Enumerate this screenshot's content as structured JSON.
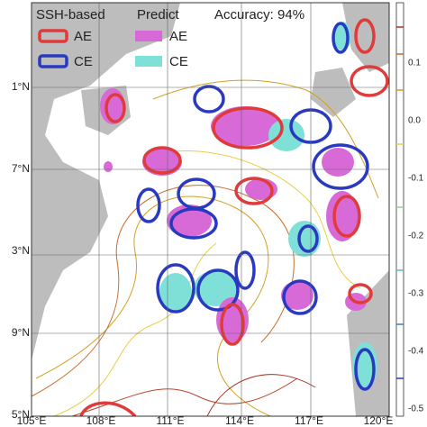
{
  "legend": {
    "headers": [
      "SSH-based",
      "Predict",
      "Accuracy: 94%"
    ],
    "entries": [
      "AE",
      "CE",
      "AE",
      "CE"
    ]
  },
  "axes": {
    "y_labels": [
      "1°N",
      "7°N",
      "3°N",
      "9°N",
      "5°N"
    ],
    "x_labels": [
      "105°E",
      "108°E",
      "111°E",
      "114°E",
      "117°E",
      "120°E"
    ]
  },
  "colorbar": {
    "labels": [
      "0.1",
      "0.0",
      "-0.1",
      "-0.2",
      "-0.3",
      "-0.4",
      "-0.5"
    ]
  }
}
